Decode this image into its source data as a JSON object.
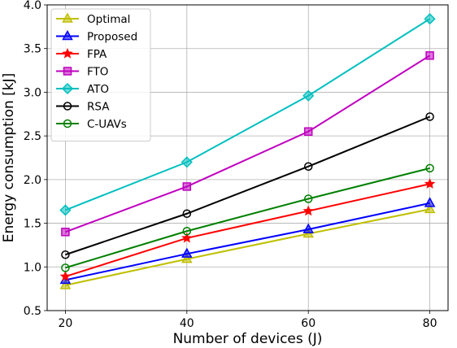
{
  "chart_data": {
    "type": "line",
    "xlabel": "Number of devices (J)",
    "ylabel": "Energy consumption [kJ]",
    "x": [
      20,
      40,
      60,
      80
    ],
    "xlim": [
      17,
      83
    ],
    "ylim": [
      0.5,
      4.0
    ],
    "xticks": [
      "20",
      "40",
      "60",
      "80"
    ],
    "yticks": [
      "0.5",
      "1.0",
      "1.5",
      "2.0",
      "2.5",
      "3.0",
      "3.5",
      "4.0"
    ],
    "grid": true,
    "legend_position": "top-left",
    "series": [
      {
        "name": "Optimal",
        "color": "#bfbf00",
        "marker": "triangle",
        "values": [
          0.79,
          1.09,
          1.38,
          1.66
        ]
      },
      {
        "name": "Proposed",
        "color": "#0000ff",
        "marker": "triangle",
        "values": [
          0.85,
          1.15,
          1.43,
          1.73
        ]
      },
      {
        "name": "FPA",
        "color": "#ff0000",
        "marker": "star",
        "values": [
          0.89,
          1.33,
          1.64,
          1.95
        ]
      },
      {
        "name": "FTO",
        "color": "#bf00bf",
        "marker": "square",
        "values": [
          1.4,
          1.92,
          2.55,
          3.42
        ]
      },
      {
        "name": "ATO",
        "color": "#00bfbf",
        "marker": "diamond",
        "values": [
          1.65,
          2.2,
          2.96,
          3.84
        ]
      },
      {
        "name": "RSA",
        "color": "#000000",
        "marker": "circle",
        "values": [
          1.14,
          1.61,
          2.15,
          2.72
        ]
      },
      {
        "name": "C-UAVs",
        "color": "#008000",
        "marker": "circle",
        "values": [
          0.99,
          1.41,
          1.78,
          2.13
        ]
      }
    ]
  }
}
